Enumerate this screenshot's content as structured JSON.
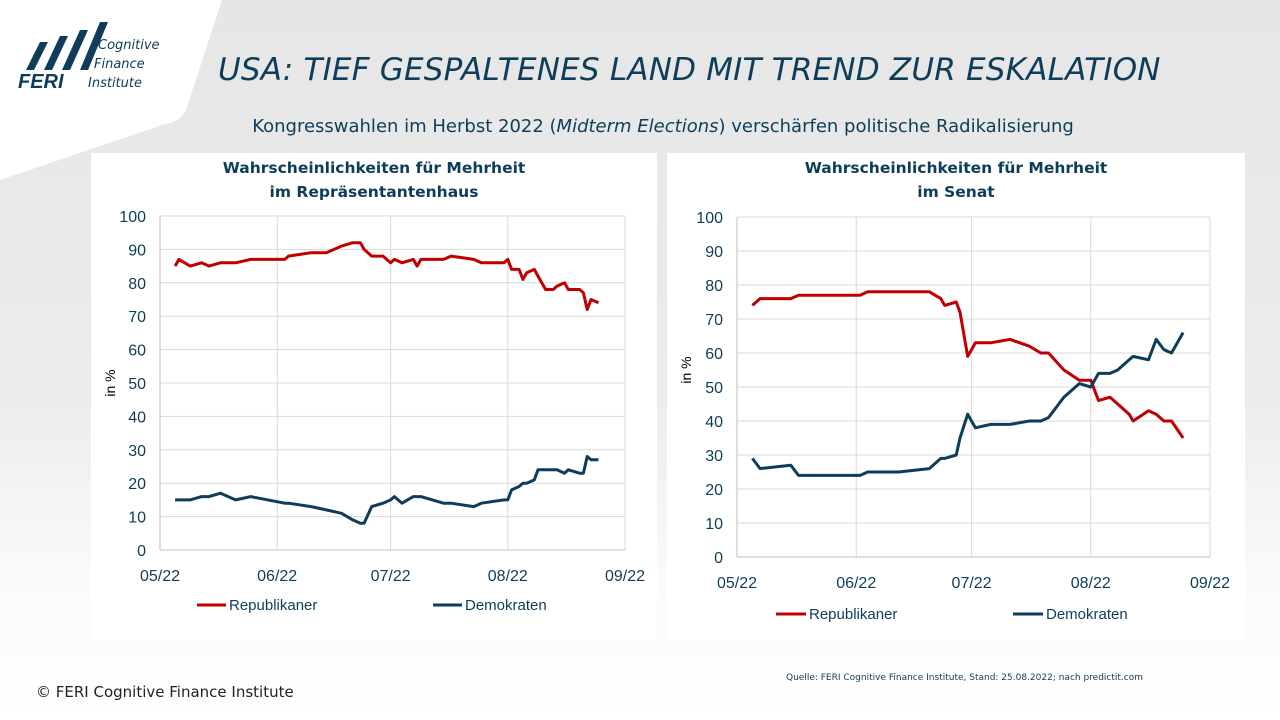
{
  "header": {
    "title": "USA: TIEF GESPALTENES LAND MIT TREND ZUR ESKALATION",
    "subtitle_pre": "Kongresswahlen im Herbst 2022 (",
    "subtitle_em": "Midterm Elections",
    "subtitle_post": ") verschärfen politische Radikalisierung"
  },
  "logo": {
    "brand": "FERI",
    "line1": "Cognitive",
    "line2": "Finance",
    "line3": "Institute"
  },
  "footer": {
    "copyright": "© FERI Cognitive Finance Institute",
    "source": "Quelle: FERI Cognitive Finance Institute, Stand: 25.08.2022; nach predictit.com"
  },
  "colors": {
    "republikaner": "#c00000",
    "demokraten": "#0e3d5a",
    "title": "#0e3d5a"
  },
  "chart_data": [
    {
      "type": "line",
      "title_line1": "Wahrscheinlichkeiten  für Mehrheit",
      "title_line2": "im Repräsentantenhaus",
      "ylabel": "in %",
      "ylim": [
        0,
        100
      ],
      "yticks": [
        0,
        10,
        20,
        30,
        40,
        50,
        60,
        70,
        80,
        90,
        100
      ],
      "xlim": [
        "2022-05-01",
        "2022-09-01"
      ],
      "xticks": [
        {
          "date": "2022-05-01",
          "label": "05/22"
        },
        {
          "date": "2022-06-01",
          "label": "06/22"
        },
        {
          "date": "2022-07-01",
          "label": "07/22"
        },
        {
          "date": "2022-08-01",
          "label": "08/22"
        },
        {
          "date": "2022-09-01",
          "label": "09/22"
        }
      ],
      "grid": true,
      "legend": "bottom",
      "x": [
        "2022-05-05",
        "2022-05-06",
        "2022-05-09",
        "2022-05-12",
        "2022-05-14",
        "2022-05-17",
        "2022-05-21",
        "2022-05-25",
        "2022-06-03",
        "2022-06-04",
        "2022-06-10",
        "2022-06-14",
        "2022-06-18",
        "2022-06-21",
        "2022-06-23",
        "2022-06-24",
        "2022-06-26",
        "2022-06-29",
        "2022-07-01",
        "2022-07-02",
        "2022-07-04",
        "2022-07-07",
        "2022-07-08",
        "2022-07-09",
        "2022-07-15",
        "2022-07-17",
        "2022-07-23",
        "2022-07-25",
        "2022-07-31",
        "2022-08-01",
        "2022-08-02",
        "2022-08-04",
        "2022-08-05",
        "2022-08-06",
        "2022-08-08",
        "2022-08-09",
        "2022-08-11",
        "2022-08-13",
        "2022-08-14",
        "2022-08-16",
        "2022-08-17",
        "2022-08-20",
        "2022-08-21",
        "2022-08-22",
        "2022-08-23",
        "2022-08-25"
      ],
      "series": [
        {
          "name": "Republikaner",
          "color": "#c00000",
          "values": [
            85,
            87,
            85,
            86,
            85,
            86,
            86,
            87,
            87,
            88,
            89,
            89,
            91,
            92,
            92,
            90,
            88,
            88,
            86,
            87,
            86,
            87,
            85,
            87,
            87,
            88,
            87,
            86,
            86,
            87,
            84,
            84,
            81,
            83,
            84,
            82,
            78,
            78,
            79,
            80,
            78,
            78,
            77,
            72,
            75,
            74
          ]
        },
        {
          "name": "Demokraten",
          "color": "#0e3d5a",
          "values": [
            15,
            15,
            15,
            16,
            16,
            17,
            15,
            16,
            14,
            14,
            13,
            12,
            11,
            9,
            8,
            8,
            13,
            14,
            15,
            16,
            14,
            16,
            16,
            16,
            14,
            14,
            13,
            14,
            15,
            15,
            18,
            19,
            20,
            20,
            21,
            24,
            24,
            24,
            24,
            23,
            24,
            23,
            23,
            28,
            27,
            27
          ]
        }
      ]
    },
    {
      "type": "line",
      "title_line1": "Wahrscheinlichkeiten  für Mehrheit",
      "title_line2": "im Senat",
      "ylabel": "in %",
      "ylim": [
        0,
        100
      ],
      "yticks": [
        0,
        10,
        20,
        30,
        40,
        50,
        60,
        70,
        80,
        90,
        100
      ],
      "xlim": [
        "2022-05-01",
        "2022-09-01"
      ],
      "xticks": [
        {
          "date": "2022-05-01",
          "label": "05/22"
        },
        {
          "date": "2022-06-01",
          "label": "06/22"
        },
        {
          "date": "2022-07-01",
          "label": "07/22"
        },
        {
          "date": "2022-08-01",
          "label": "08/22"
        },
        {
          "date": "2022-09-01",
          "label": "09/22"
        }
      ],
      "grid": true,
      "legend": "bottom",
      "x": [
        "2022-05-05",
        "2022-05-07",
        "2022-05-15",
        "2022-05-17",
        "2022-06-02",
        "2022-06-04",
        "2022-06-12",
        "2022-06-20",
        "2022-06-23",
        "2022-06-24",
        "2022-06-27",
        "2022-06-28",
        "2022-06-30",
        "2022-07-02",
        "2022-07-06",
        "2022-07-11",
        "2022-07-16",
        "2022-07-19",
        "2022-07-21",
        "2022-07-25",
        "2022-07-29",
        "2022-08-01",
        "2022-08-03",
        "2022-08-06",
        "2022-08-08",
        "2022-08-11",
        "2022-08-12",
        "2022-08-16",
        "2022-08-18",
        "2022-08-20",
        "2022-08-22",
        "2022-08-25"
      ],
      "series": [
        {
          "name": "Republikaner",
          "color": "#c00000",
          "values": [
            74,
            76,
            76,
            77,
            77,
            78,
            78,
            78,
            76,
            74,
            75,
            72,
            59,
            63,
            63,
            64,
            62,
            60,
            60,
            55,
            52,
            52,
            46,
            47,
            45,
            42,
            40,
            43,
            42,
            40,
            40,
            35
          ]
        },
        {
          "name": "Demokraten",
          "color": "#0e3d5a",
          "values": [
            29,
            26,
            27,
            24,
            24,
            25,
            25,
            26,
            29,
            29,
            30,
            35,
            42,
            38,
            39,
            39,
            40,
            40,
            41,
            47,
            51,
            50,
            54,
            54,
            55,
            58,
            59,
            58,
            64,
            61,
            60,
            66
          ]
        }
      ]
    }
  ]
}
